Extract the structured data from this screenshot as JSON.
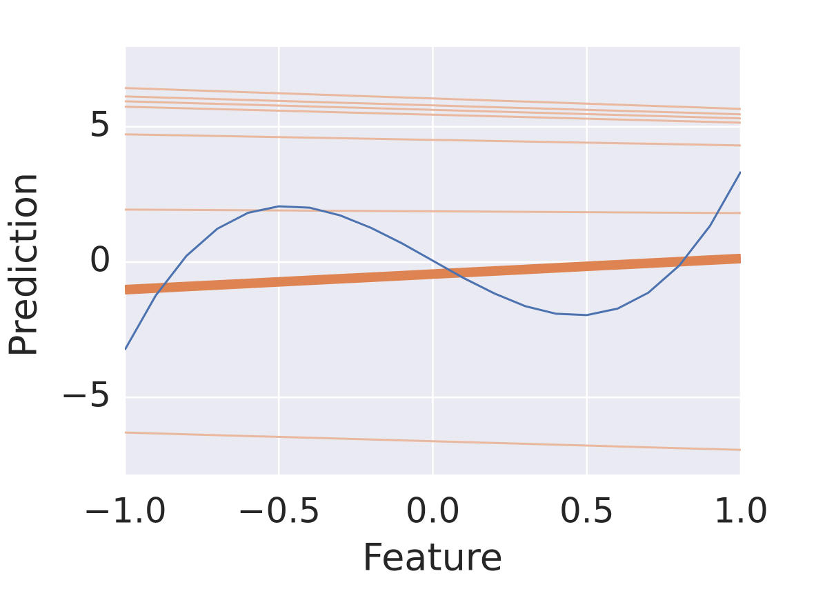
{
  "chart_data": {
    "type": "line",
    "xlabel": "Feature",
    "ylabel": "Prediction",
    "xlim": [
      -1,
      1
    ],
    "ylim": [
      -7.85,
      7.95
    ],
    "xticks": [
      {
        "value": -1,
        "label": "−1.0"
      },
      {
        "value": -0.5,
        "label": "−0.5"
      },
      {
        "value": 0,
        "label": "0.0"
      },
      {
        "value": 0.5,
        "label": "0.5"
      },
      {
        "value": 1,
        "label": "1.0"
      }
    ],
    "yticks": [
      {
        "value": -5,
        "label": "−5"
      },
      0,
      5
    ],
    "grid": true,
    "background": "#eaeaf2",
    "series": [
      {
        "color": "#e9b89f",
        "line_width": 3,
        "x": [
          -1,
          1
        ],
        "values": [
          6.43,
          5.66
        ]
      },
      {
        "color": "#e9b89f",
        "line_width": 3,
        "x": [
          -1,
          1
        ],
        "values": [
          6.12,
          5.46
        ]
      },
      {
        "color": "#e9b89f",
        "line_width": 3,
        "x": [
          -1,
          1
        ],
        "values": [
          5.94,
          5.31
        ]
      },
      {
        "color": "#e9b89f",
        "line_width": 3,
        "x": [
          -1,
          1
        ],
        "values": [
          5.74,
          5.15
        ]
      },
      {
        "color": "#e9b89f",
        "line_width": 3,
        "x": [
          -1,
          1
        ],
        "values": [
          4.72,
          4.31
        ]
      },
      {
        "color": "#e9b89f",
        "line_width": 3,
        "x": [
          -1,
          1
        ],
        "values": [
          1.94,
          1.81
        ]
      },
      {
        "color": "#e9b89f",
        "line_width": 3,
        "x": [
          -1,
          1
        ],
        "values": [
          -6.3,
          -6.94
        ]
      },
      {
        "color": "#dd8452",
        "line_width": 14,
        "x": [
          -1,
          1
        ],
        "values": [
          -1.02,
          0.13
        ]
      },
      {
        "color": "#4c72b0",
        "line_width": 3,
        "x": [
          -1,
          -0.9,
          -0.8,
          -0.7,
          -0.6,
          -0.5,
          -0.4,
          -0.3,
          -0.2,
          -0.1,
          0,
          0.1,
          0.2,
          0.3,
          0.4,
          0.5,
          0.6,
          0.7,
          0.8,
          0.9,
          1
        ],
        "values": [
          -3.24,
          -1.24,
          0.23,
          1.23,
          1.82,
          2.06,
          2.01,
          1.72,
          1.26,
          0.69,
          0.05,
          -0.59,
          -1.16,
          -1.63,
          -1.91,
          -1.96,
          -1.72,
          -1.13,
          -0.13,
          1.34,
          3.34
        ]
      }
    ]
  }
}
